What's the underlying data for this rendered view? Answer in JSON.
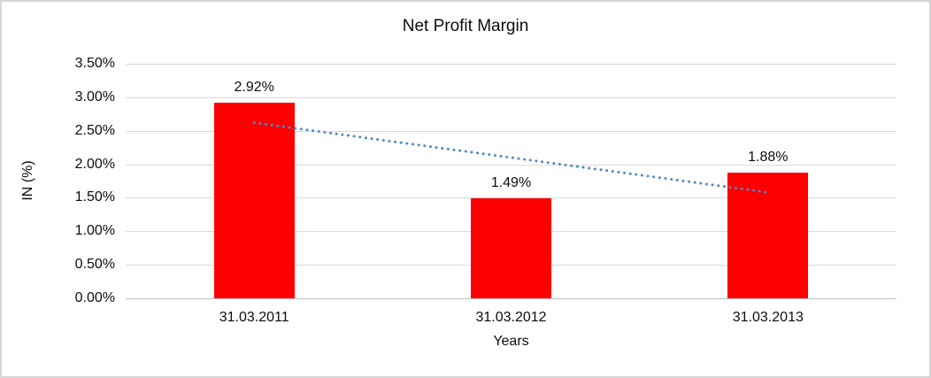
{
  "chart_data": {
    "type": "bar",
    "title": "Net Profit Margin",
    "xlabel": "Years",
    "ylabel": "IN (%)",
    "categories": [
      "31.03.2011",
      "31.03.2012",
      "31.03.2013"
    ],
    "values": [
      2.92,
      1.49,
      1.88
    ],
    "data_labels": [
      "2.92%",
      "1.49%",
      "1.88%"
    ],
    "ylim": [
      0,
      3.5
    ],
    "ytick_step": 0.5,
    "ytick_labels": [
      "0.00%",
      "0.50%",
      "1.00%",
      "1.50%",
      "2.00%",
      "2.50%",
      "3.00%",
      "3.50%"
    ],
    "grid": true,
    "legend": "none",
    "bar_color": "#ff0000",
    "gridline_color": "#d9d9d9",
    "axis_line_color": "#bfbfbf",
    "trendline": {
      "type": "linear",
      "style": "dotted",
      "color": "#4e87c7",
      "start_value": 2.62,
      "end_value": 1.58
    }
  }
}
